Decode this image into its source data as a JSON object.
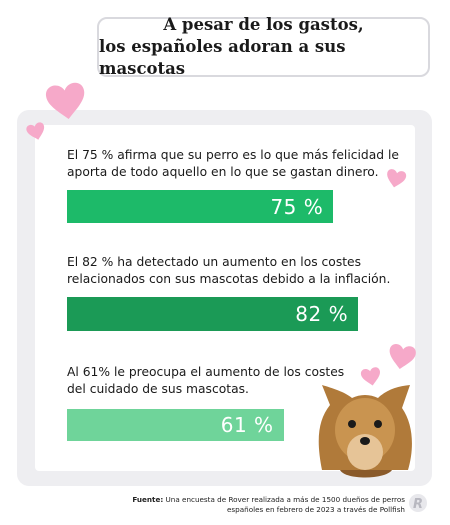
{
  "chart_data": {
    "type": "bar",
    "orientation": "horizontal",
    "title": [
      "A pesar de los gastos,",
      "los españoles adoran a sus mascotas"
    ],
    "categories": [
      "El 75 % afirma que su perro es lo que más felicidad le\naporta de todo aquello en lo que se gastan dinero.",
      "El 82 % ha detectado un aumento en los costes\nrelacionados con sus mascotas debido a la inflación.",
      "Al 61% le preocupa el aumento de los costes\ndel cuidado de sus mascotas."
    ],
    "values": [
      75,
      82,
      61
    ],
    "value_labels": [
      "75 %",
      "82 %",
      "61 %"
    ],
    "colors": [
      "#1dba69",
      "#1b9a56",
      "#6fd49a"
    ],
    "xlim": [
      0,
      100
    ],
    "source_label": "Fuente:",
    "source_text": "Una encuesta de Rover realizada a más de 1500 dueños de perros españoles en febrero de 2023 a través de Pollfish"
  }
}
